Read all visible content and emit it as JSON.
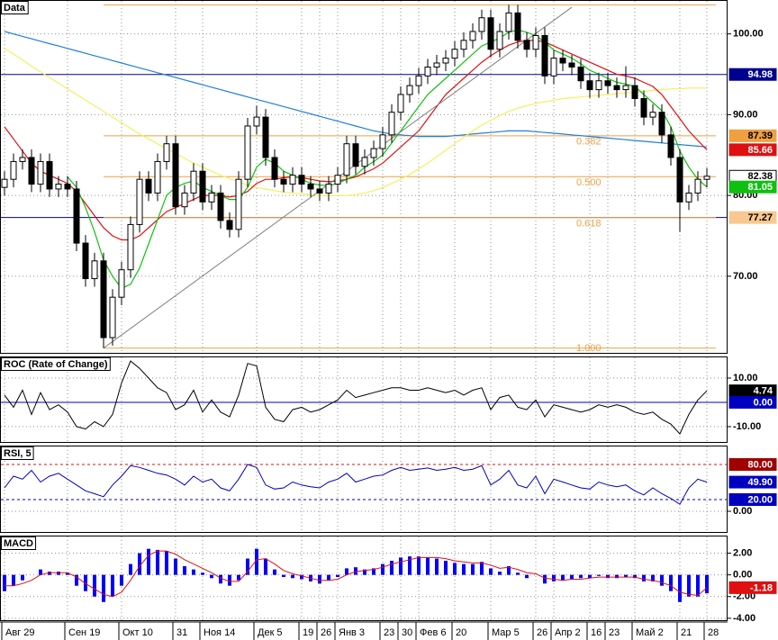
{
  "chart_data": [
    {
      "type": "candlestick",
      "title": "Data",
      "categories": [
        "Авг 29",
        null,
        null,
        null,
        null,
        null,
        null,
        "Сен 19",
        null,
        null,
        null,
        null,
        null,
        "Окт 10",
        null,
        null,
        null,
        null,
        null,
        "31",
        null,
        null,
        "Ноя 14",
        null,
        null,
        null,
        null,
        null,
        "Дек 5",
        null,
        null,
        null,
        null,
        "19",
        null,
        "26",
        null,
        "Янв 3",
        null,
        null,
        null,
        null,
        "23",
        null,
        "30",
        null,
        "Фев 6",
        null,
        null,
        null,
        "20",
        null,
        null,
        null,
        "Мар 5",
        null,
        null,
        null,
        null,
        "26",
        null,
        "Апр 2",
        null,
        null,
        null,
        "16",
        null,
        "23",
        null,
        null,
        "Май 2",
        null,
        null,
        null,
        null,
        "21",
        null,
        null,
        "28"
      ],
      "open": [
        81,
        82,
        84.2,
        84.7,
        81.4,
        84.2,
        80.8,
        81.4,
        80.8,
        74.1,
        69.7,
        71.9,
        62.4,
        67.4,
        70.8,
        76.4,
        82,
        80.3,
        84.2,
        86.4,
        78.6,
        80.3,
        83,
        79.2,
        80.3,
        76.9,
        75.8,
        82,
        88.6,
        89.7,
        84.7,
        82,
        81.4,
        82.5,
        81.4,
        80.8,
        80.3,
        81.4,
        82.5,
        86.4,
        83.6,
        84.7,
        85.8,
        87.5,
        90.3,
        92.5,
        93.6,
        94.8,
        95.9,
        96.4,
        97,
        98.1,
        99.2,
        100.3,
        102,
        98.1,
        100.3,
        102.6,
        99.2,
        98.1,
        99.8,
        94.8,
        97,
        96.4,
        95.9,
        94.2,
        93.1,
        94.2,
        93.6,
        93.1,
        93.6,
        92,
        89.7,
        90.3,
        87.5,
        84.7,
        79.2,
        80.3,
        82
      ],
      "high": [
        83,
        85.2,
        85.7,
        85.7,
        85.2,
        85.2,
        82.4,
        82.4,
        81.8,
        75.1,
        72.9,
        72.9,
        68.4,
        71.8,
        77.4,
        83,
        83,
        85.2,
        87.4,
        87.4,
        81.3,
        84,
        84,
        81.3,
        81.3,
        77.9,
        83,
        89.6,
        91.1,
        90.7,
        85.7,
        83,
        83.5,
        83.5,
        82.4,
        81.8,
        82.4,
        83.5,
        87.4,
        87.4,
        85.7,
        86.8,
        88.5,
        91.3,
        93.5,
        94.6,
        95.8,
        96.9,
        97.4,
        98,
        99.1,
        100.2,
        101.3,
        103,
        103,
        101.3,
        103.6,
        103.6,
        100.2,
        100.8,
        100.8,
        98,
        98,
        97.4,
        96.9,
        95.2,
        95.2,
        95.2,
        94.6,
        96,
        94.6,
        93,
        91.3,
        91.3,
        88.5,
        85.7,
        81.3,
        83,
        83.4
      ],
      "low": [
        80,
        81,
        83.2,
        80.4,
        80.4,
        79.8,
        79.8,
        79.8,
        73.1,
        68.7,
        68.7,
        61.1,
        61.4,
        66.4,
        69.8,
        75.4,
        79.3,
        79.3,
        83.2,
        77.6,
        77.6,
        79.3,
        78.2,
        78.2,
        75.9,
        74.8,
        74.8,
        81,
        87.6,
        83.7,
        81,
        80.4,
        80.4,
        80.4,
        79.8,
        79.3,
        79.3,
        80.4,
        81.5,
        82.6,
        82.6,
        83.7,
        84.8,
        86.5,
        89.3,
        91.5,
        92.6,
        93.8,
        94.9,
        95.4,
        96,
        97.1,
        98.2,
        99.3,
        97.1,
        97.1,
        99.3,
        98.2,
        97.1,
        97.1,
        93.8,
        93.8,
        95.4,
        94.9,
        93.2,
        92.1,
        92.1,
        92.6,
        92.1,
        92.1,
        91,
        88.7,
        88.7,
        86.5,
        83.7,
        75.5,
        78.2,
        79.3,
        81
      ],
      "close": [
        82,
        84.2,
        84.7,
        81.4,
        84.2,
        80.8,
        81.4,
        80.8,
        74.1,
        69.7,
        71.9,
        62.4,
        67.4,
        70.8,
        76.4,
        82,
        80.3,
        84.2,
        86.4,
        78.6,
        80.3,
        83,
        79.2,
        80.3,
        76.9,
        75.8,
        82,
        88.6,
        89.7,
        84.7,
        82,
        81.4,
        82.5,
        81.4,
        80.8,
        80.3,
        81.4,
        82.5,
        86.4,
        83.6,
        84.7,
        85.8,
        87.5,
        90.3,
        92.5,
        93.6,
        94.8,
        95.9,
        96.4,
        97,
        98.1,
        99.2,
        100.3,
        102,
        98.1,
        100.3,
        102.6,
        99.2,
        98.1,
        99.8,
        94.8,
        97,
        96.4,
        95.9,
        94.2,
        93.1,
        94.2,
        93.6,
        93.1,
        93.6,
        92,
        89.7,
        90.3,
        87.5,
        84.7,
        79.2,
        80.3,
        82,
        82.38
      ],
      "lines": [
        {
          "color": "#1e7fe0",
          "values": [
            100.3,
            100,
            99.7,
            99.4,
            99.1,
            98.8,
            98.5,
            98.2,
            97.9,
            97.6,
            97.3,
            97,
            96.7,
            96.4,
            96.1,
            95.8,
            95.5,
            95.2,
            94.9,
            94.6,
            94.3,
            94,
            93.7,
            93.4,
            93.1,
            92.8,
            92.5,
            92.2,
            91.9,
            91.6,
            91.3,
            91,
            90.7,
            90.4,
            90.1,
            89.8,
            89.5,
            89.2,
            88.9,
            88.6,
            88.3,
            88,
            87.8,
            87.6,
            87.5,
            87.4,
            87.3,
            87.3,
            87.3,
            87.3,
            87.4,
            87.5,
            87.6,
            87.7,
            87.8,
            87.9,
            88,
            88,
            88,
            87.9,
            87.8,
            87.7,
            87.6,
            87.5,
            87.4,
            87.3,
            87.2,
            87.1,
            87,
            86.9,
            86.8,
            86.7,
            86.6,
            86.5,
            86.4,
            86.3,
            86.2,
            86.1,
            86
          ]
        },
        {
          "color": "#f4f060",
          "values": [
            98.2,
            97.5,
            96.8,
            96,
            95.3,
            94.6,
            93.9,
            93.2,
            92.5,
            91.8,
            91.1,
            90.4,
            89.7,
            89,
            88.3,
            87.6,
            87,
            86.4,
            85.8,
            85.2,
            84.6,
            84,
            83.5,
            83,
            82.5,
            82.1,
            81.7,
            81.3,
            81,
            80.8,
            80.6,
            80.4,
            80.3,
            80.2,
            80.1,
            80,
            80,
            80,
            80,
            80.1,
            80.3,
            80.6,
            81,
            81.5,
            82,
            82.6,
            83.3,
            84,
            84.8,
            85.6,
            86.4,
            87.2,
            88,
            88.7,
            89.3,
            89.9,
            90.4,
            90.8,
            91.1,
            91.4,
            91.6,
            91.8,
            92,
            92.1,
            92.2,
            92.3,
            92.4,
            92.5,
            92.6,
            92.7,
            92.8,
            92.9,
            93,
            93.1,
            93.2,
            93.2,
            93.3,
            93.3,
            93.3
          ]
        },
        {
          "color": "#e01010",
          "values": [
            88.5,
            87,
            85.5,
            84,
            83,
            82.5,
            82,
            81.5,
            80.5,
            79,
            77.5,
            76,
            75,
            74.5,
            74.5,
            75,
            76,
            77,
            78,
            78.5,
            79,
            79.5,
            80,
            80,
            80,
            79.8,
            80,
            80.5,
            81.5,
            82,
            82,
            82.2,
            82.3,
            82.2,
            82,
            81.8,
            81.7,
            81.8,
            82,
            82.3,
            82.8,
            83.3,
            84,
            85,
            86,
            87,
            88,
            89.5,
            91,
            92.5,
            93.5,
            94.5,
            95.5,
            96.5,
            97.3,
            98,
            98.6,
            99,
            99.2,
            99.2,
            99,
            98.5,
            98,
            97.5,
            97,
            96.5,
            96,
            95.5,
            95,
            94.8,
            94.5,
            94,
            93.5,
            92.5,
            91,
            89.5,
            88,
            86.8,
            85.66
          ]
        },
        {
          "color": "#10c010",
          "values": [
            null,
            null,
            null,
            null,
            null,
            null,
            null,
            82.3,
            81,
            78.5,
            75.5,
            72,
            70,
            68.5,
            69,
            71,
            74,
            77,
            80,
            81,
            81.5,
            81.8,
            81,
            80.5,
            80,
            79.5,
            79.5,
            81,
            83.5,
            84.5,
            84,
            83,
            82.5,
            82,
            81.5,
            81.3,
            81.2,
            81.5,
            82,
            82.5,
            83.5,
            84.2,
            85,
            86.5,
            88,
            89.5,
            91,
            92.5,
            93.5,
            94.5,
            95.5,
            96.5,
            97.5,
            98.5,
            99,
            99.5,
            100.2,
            100.5,
            100.2,
            99.8,
            99,
            98,
            97.5,
            97,
            96.3,
            95.5,
            95,
            94.5,
            94,
            93.8,
            93.5,
            92.5,
            91.5,
            90.5,
            88.5,
            85.5,
            83.5,
            82,
            81.05
          ]
        }
      ],
      "trendline": {
        "color": "#808080",
        "x": [
          11,
          63
        ],
        "y": [
          61.1,
          103.3
        ]
      },
      "fib": {
        "color": "#f0a040",
        "levels": [
          {
            "value": 103.6
          },
          {
            "value": 87.39,
            "label": "0.382"
          },
          {
            "value": 82.33,
            "label": "0.500"
          },
          {
            "value": 77.27,
            "label": "0.618"
          },
          {
            "value": 61.1,
            "label": "1.000"
          }
        ]
      },
      "ylim": [
        60.4,
        104.2
      ],
      "yticks": [
        {
          "value": 100,
          "label": "100.00"
        },
        {
          "value": 90,
          "label": "90.00"
        },
        {
          "value": 80,
          "label": "80.00"
        },
        {
          "value": 70,
          "label": "70.00"
        }
      ],
      "markers": [
        {
          "value": 94.98,
          "color": "#000090",
          "text_color": "#ffffff",
          "line_color": "#000090"
        },
        {
          "value": 87.39,
          "color": "#f0a040",
          "text_color": "#000000"
        },
        {
          "value": 85.66,
          "color": "#e01010",
          "text_color": "#ffffff"
        },
        {
          "value": 82.38,
          "color": "#ffffff",
          "text_color": "#000000"
        },
        {
          "value": 81.05,
          "color": "#10c010",
          "text_color": "#ffffff"
        },
        {
          "value": 77.27,
          "color": "#f8c890",
          "text_color": "#000000",
          "line_color": "#000090"
        }
      ]
    },
    {
      "type": "line",
      "title": "ROC (Rate of Change)",
      "color": "#000000",
      "values": [
        3,
        -2,
        5,
        -5,
        4,
        -3,
        -1,
        -4,
        -10,
        -11,
        -8,
        -10,
        -5,
        8,
        17,
        14,
        10,
        6,
        4,
        -3,
        -1,
        5,
        -4,
        1,
        -4,
        -6,
        3,
        16,
        15,
        -2,
        -7,
        -8,
        -3,
        -2,
        -4,
        -3,
        -1,
        1,
        5,
        2,
        3,
        4,
        5,
        6,
        6,
        5,
        5,
        6,
        5,
        4,
        5,
        3,
        5,
        6,
        -3,
        2,
        3,
        -2,
        -3,
        1,
        -6,
        -1,
        -2,
        -3,
        -4,
        -3,
        -1,
        -2,
        -1,
        -2,
        -4,
        -5,
        -4,
        -7,
        -9,
        -13,
        -5,
        1,
        4.74
      ],
      "ylim": [
        -16.7,
        18.9
      ],
      "yticks": [
        {
          "value": 10,
          "label": "10.00"
        },
        {
          "value": -10,
          "label": "-10.00"
        }
      ],
      "markers": [
        {
          "value": 4.74,
          "color": "#000000",
          "text_color": "#ffffff"
        },
        {
          "value": 0,
          "label": "0.00",
          "color": "#0000c0",
          "text_color": "#ffffff",
          "line_color": "#0000c0"
        }
      ]
    },
    {
      "type": "line",
      "title": "RSI, 5",
      "color": "#0000c0",
      "values": [
        40,
        60,
        55,
        70,
        50,
        60,
        65,
        55,
        45,
        35,
        30,
        25,
        45,
        60,
        78,
        75,
        70,
        65,
        62,
        55,
        45,
        60,
        50,
        55,
        40,
        35,
        55,
        80,
        75,
        45,
        38,
        40,
        50,
        45,
        42,
        40,
        50,
        55,
        65,
        50,
        55,
        60,
        62,
        70,
        75,
        70,
        72,
        74,
        70,
        72,
        75,
        70,
        72,
        78,
        45,
        55,
        70,
        45,
        40,
        60,
        30,
        55,
        50,
        45,
        40,
        38,
        50,
        45,
        42,
        45,
        35,
        28,
        40,
        30,
        22,
        12,
        40,
        55,
        49.9
      ],
      "ylim": [
        -36.9,
        112.3
      ],
      "yticks": [
        {
          "value": 0,
          "label": "0.00"
        }
      ],
      "markers": [
        {
          "value": 80,
          "label": "80.00",
          "color": "#a00000",
          "text_color": "#ffffff",
          "line_color": "#e01010",
          "dash": true
        },
        {
          "value": 49.9,
          "label": "49.90",
          "color": "#0000c0",
          "text_color": "#ffffff"
        },
        {
          "value": 20,
          "label": "20.00",
          "color": "#0000c0",
          "text_color": "#ffffff",
          "line_color": "#0000c0",
          "dash": true
        }
      ]
    },
    {
      "type": "bar",
      "title": "MACD",
      "color": "#0000ff",
      "values": [
        -1.5,
        -1,
        -0.5,
        0,
        0.5,
        0.3,
        0.3,
        0.2,
        -1,
        -1.5,
        -2,
        -2.5,
        -2,
        -1,
        1,
        2,
        2.4,
        2.3,
        2.2,
        1.5,
        0.8,
        0.5,
        0.2,
        -0.3,
        -0.8,
        -1,
        -0.5,
        1.5,
        2.4,
        1.5,
        0.5,
        -0.2,
        -0.3,
        -0.4,
        -0.6,
        -0.8,
        -0.5,
        -0.2,
        0.6,
        0.7,
        0.5,
        0.6,
        1,
        1.3,
        1.6,
        1.7,
        1.7,
        1.6,
        1.5,
        1.3,
        1.1,
        1,
        1,
        1.2,
        0.6,
        0.3,
        0.8,
        0.2,
        -0.3,
        0,
        -0.8,
        -0.6,
        -0.5,
        -0.4,
        -0.3,
        -0.3,
        -0.1,
        -0.3,
        -0.3,
        -0.2,
        -0.3,
        -0.6,
        -0.6,
        -1,
        -1.5,
        -2.5,
        -2,
        -2,
        -1.7
      ],
      "signal": {
        "color": "#e01010",
        "values": [
          -1,
          -1,
          -0.8,
          -0.5,
          0,
          0.2,
          0.2,
          0.2,
          -0.2,
          -0.8,
          -1.3,
          -1.8,
          -2,
          -1.6,
          -0.5,
          0.8,
          1.8,
          2.2,
          2.2,
          1.9,
          1.4,
          1,
          0.6,
          0.2,
          -0.3,
          -0.6,
          -0.6,
          0.3,
          1.4,
          1.5,
          1,
          0.4,
          0.1,
          -0.1,
          -0.3,
          -0.5,
          -0.5,
          -0.4,
          0,
          0.3,
          0.4,
          0.5,
          0.7,
          1,
          1.2,
          1.4,
          1.6,
          1.6,
          1.6,
          1.5,
          1.3,
          1.2,
          1.1,
          1.1,
          0.9,
          0.6,
          0.7,
          0.5,
          0.2,
          0.1,
          -0.3,
          -0.4,
          -0.5,
          -0.4,
          -0.4,
          -0.3,
          -0.2,
          -0.2,
          -0.2,
          -0.2,
          -0.2,
          -0.4,
          -0.5,
          -0.7,
          -1,
          -1.6,
          -1.8,
          -1.9,
          -1.18
        ]
      },
      "ylim": [
        -4.26,
        3.62
      ],
      "yticks": [
        {
          "value": 2,
          "label": "2.00"
        },
        {
          "value": 0,
          "label": "0.00"
        },
        {
          "value": -2,
          "label": "-2.00"
        },
        {
          "value": -4,
          "label": "-4.00"
        }
      ],
      "markers": [
        {
          "value": -1.18,
          "color": "#e01010",
          "text_color": "#ffffff"
        }
      ]
    }
  ]
}
